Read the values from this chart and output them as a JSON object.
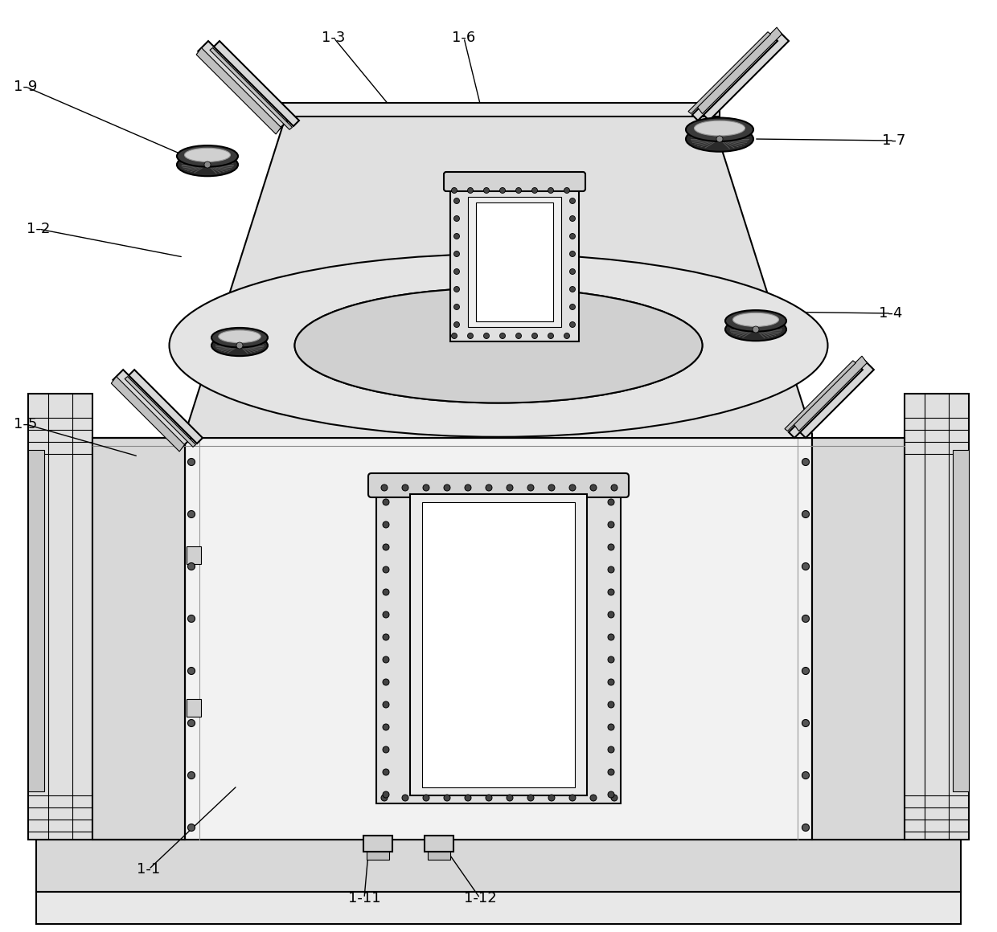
{
  "bg_color": "#ffffff",
  "lw_main": 1.5,
  "lw_thin": 0.8,
  "body_fill": "#e8e8e8",
  "side_fill": "#d0d0d0",
  "dark_fill": "#b8b8b8",
  "white_fill": "#ffffff",
  "labels": [
    [
      "1-1",
      185,
      1082,
      295,
      978
    ],
    [
      "1-2",
      48,
      285,
      228,
      320
    ],
    [
      "1-3",
      415,
      47,
      498,
      148
    ],
    [
      "1-4",
      1108,
      390,
      952,
      388
    ],
    [
      "1-5",
      32,
      528,
      172,
      568
    ],
    [
      "1-6",
      577,
      47,
      598,
      133
    ],
    [
      "1-7",
      1112,
      175,
      938,
      173
    ],
    [
      "1-9",
      32,
      108,
      228,
      193
    ],
    [
      "1-11",
      453,
      1118,
      458,
      1062
    ],
    [
      "1-12",
      597,
      1118,
      558,
      1062
    ]
  ]
}
